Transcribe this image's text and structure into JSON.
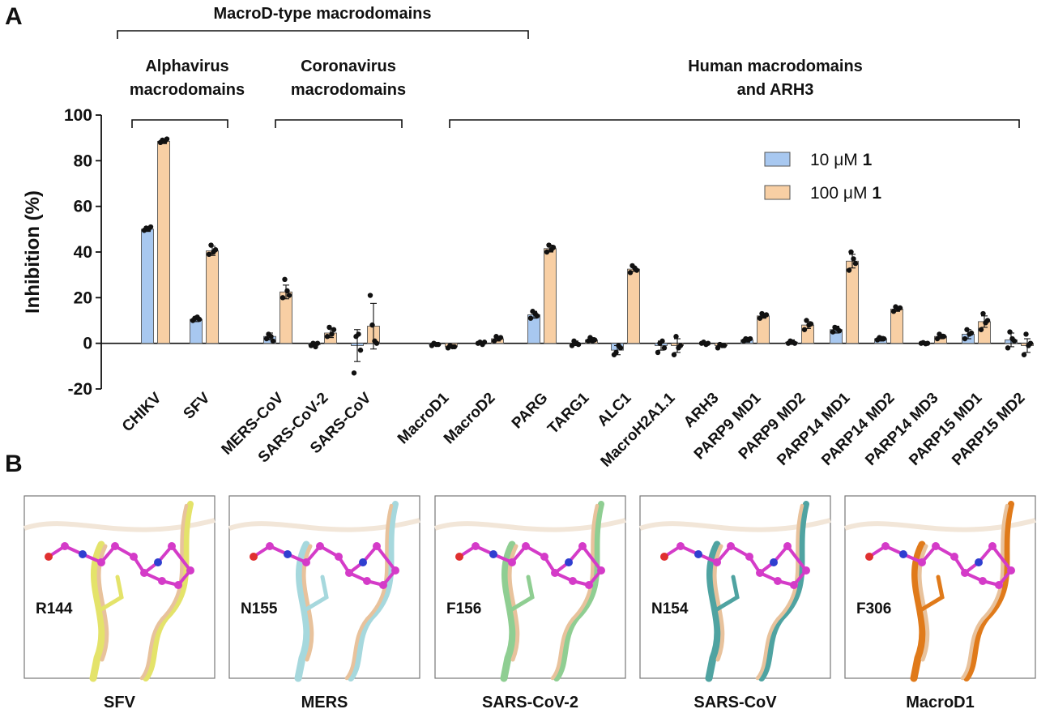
{
  "panels": {
    "a_label": "A",
    "b_label": "B"
  },
  "groups": {
    "macrod": "MacroD-type macrodomains",
    "alpha_line1": "Alphavirus",
    "alpha_line2": "macrodomains",
    "corona_line1": "Coronavirus",
    "corona_line2": "macrodomains",
    "human_line1": "Human macrodomains",
    "human_line2": "and ARH3"
  },
  "colors": {
    "series_10": "#a8c8f0",
    "series_100": "#f8cfa4",
    "highlight_category": "#cc1f1f",
    "dots": "#111111"
  },
  "chart_data": {
    "type": "bar",
    "ylabel": "Inhibition (%)",
    "ylim": [
      -20,
      100
    ],
    "yticks": [
      "100",
      "80",
      "60",
      "40",
      "20",
      "0",
      "-20"
    ],
    "legend_position": "top-right",
    "categories": [
      "CHIKV",
      "SFV",
      "MERS-CoV",
      "SARS-CoV-2",
      "SARS-CoV",
      "MacroD1",
      "MacroD2",
      "PARG",
      "TARG1",
      "ALC1",
      "MacroH2A1.1",
      "ARH3",
      "PARP9 MD1",
      "PARP9 MD2",
      "PARP14 MD1",
      "PARP14 MD2",
      "PARP14 MD3",
      "PARP15 MD1",
      "PARP15 MD2"
    ],
    "highlighted_categories": [
      "CHIKV"
    ],
    "series": [
      {
        "name_prefix": "10 μM ",
        "name_bold": "1",
        "values": [
          50,
          10.5,
          3,
          -0.5,
          -1,
          -0.5,
          0,
          12.5,
          0,
          -3,
          -1,
          0,
          1.5,
          0.5,
          6,
          2,
          0,
          4,
          1.5
        ],
        "errors": [
          1,
          1,
          1.5,
          1,
          7,
          0.5,
          0.5,
          1.5,
          1,
          2,
          2,
          0.5,
          1,
          1,
          1.5,
          1,
          0.5,
          2,
          3
        ],
        "points": [
          [
            49.5,
            50.5,
            50,
            51
          ],
          [
            10,
            11,
            11.5,
            10.5
          ],
          [
            2,
            4,
            3,
            1
          ],
          [
            -1,
            0,
            -1.5,
            0
          ],
          [
            -13,
            3,
            4,
            -3
          ],
          [
            -1,
            0,
            -0.5,
            -0.5
          ],
          [
            0,
            0.5,
            -0.5,
            0.5
          ],
          [
            11,
            14,
            13,
            12
          ],
          [
            -1,
            1,
            0,
            -0.5
          ],
          [
            -5,
            -4,
            -1,
            -2
          ],
          [
            -4,
            0,
            1,
            -2
          ],
          [
            0,
            0.5,
            -0.5,
            0
          ],
          [
            1,
            2,
            1.5,
            2
          ],
          [
            0,
            1,
            0.5,
            0
          ],
          [
            5,
            7,
            6.5,
            5.5
          ],
          [
            1.5,
            2.5,
            2,
            2
          ],
          [
            0,
            0.3,
            -0.2,
            0
          ],
          [
            2,
            6,
            4,
            4.5
          ],
          [
            -2,
            5,
            2,
            1
          ]
        ]
      },
      {
        "name_prefix": "100 μM ",
        "name_bold": "1",
        "values": [
          88.5,
          40.5,
          22.5,
          4.5,
          7.5,
          -1.5,
          2,
          41.5,
          1.5,
          32.5,
          -1,
          -1,
          12,
          8,
          36,
          15,
          3,
          9.5,
          -1
        ],
        "errors": [
          1,
          2,
          3,
          2,
          10,
          0.5,
          1,
          1.5,
          1,
          1,
          3,
          0.5,
          1,
          1.5,
          3,
          1,
          1,
          2.5,
          3
        ],
        "points": [
          [
            88,
            89,
            88.5,
            89.5
          ],
          [
            39,
            43,
            40,
            41
          ],
          [
            20,
            28,
            23,
            21
          ],
          [
            3,
            7,
            4,
            6
          ],
          [
            21,
            8,
            1,
            0
          ],
          [
            -2,
            -1,
            -1.5,
            -1.5
          ],
          [
            1,
            3,
            2,
            2.5
          ],
          [
            40,
            43,
            41,
            42
          ],
          [
            1,
            2.5,
            1,
            1.5
          ],
          [
            31,
            34,
            33,
            32
          ],
          [
            -5,
            3,
            -2,
            -1
          ],
          [
            -2,
            -0.5,
            -1,
            -1
          ],
          [
            11,
            13,
            12,
            12.5
          ],
          [
            6,
            10,
            8,
            8.5
          ],
          [
            32,
            40,
            37,
            35
          ],
          [
            14,
            16,
            15,
            15.5
          ],
          [
            2,
            4,
            3,
            3
          ],
          [
            6,
            13,
            9,
            10
          ],
          [
            -5,
            4,
            -1,
            0
          ]
        ]
      }
    ]
  },
  "structures": {
    "panels": [
      {
        "residue": "R144",
        "caption": "SFV",
        "color": "#e4e36a",
        "caption_color": "#a3966b"
      },
      {
        "residue": "N155",
        "caption": "MERS",
        "color": "#a6d8dd",
        "caption_color": "#9fc6cc"
      },
      {
        "residue": "F156",
        "caption": "SARS-CoV-2",
        "color": "#8fce92",
        "caption_color": "#8cbf8e"
      },
      {
        "residue": "N154",
        "caption": "SARS-CoV",
        "color": "#4fa3a1",
        "caption_color": "#5aa8a6"
      },
      {
        "residue": "F306",
        "caption": "MacroD1",
        "color": "#e07a1a",
        "caption_color": "#c76a1a"
      }
    ],
    "ligand_color": "#d43bc8",
    "reference_color": "#e8c29c"
  }
}
